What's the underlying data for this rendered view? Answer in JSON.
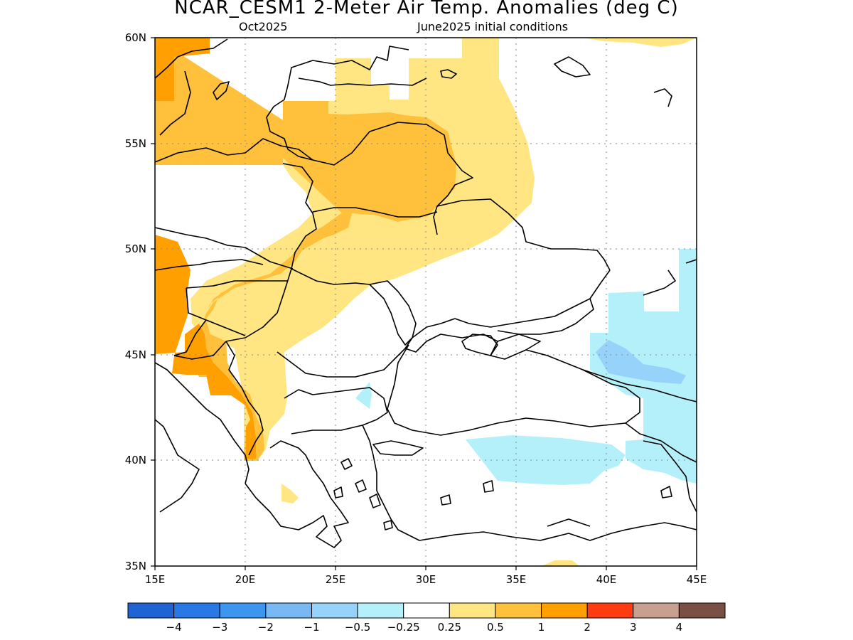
{
  "title": "NCAR_CESM1 2-Meter Air Temp. Anomalies (deg C)",
  "subtitle_left": "Oct2025",
  "subtitle_right": "June2025 initial conditions",
  "map": {
    "lon_range": [
      15,
      45
    ],
    "lat_range": [
      35,
      60
    ],
    "lon_ticks": [
      {
        "value": 15,
        "label": "15E"
      },
      {
        "value": 20,
        "label": "20E"
      },
      {
        "value": 25,
        "label": "25E"
      },
      {
        "value": 30,
        "label": "30E"
      },
      {
        "value": 35,
        "label": "35E"
      },
      {
        "value": 40,
        "label": "40E"
      },
      {
        "value": 45,
        "label": "45E"
      }
    ],
    "lat_ticks": [
      {
        "value": 60,
        "label": "60N"
      },
      {
        "value": 55,
        "label": "55N"
      },
      {
        "value": 50,
        "label": "50N"
      },
      {
        "value": 45,
        "label": "45N"
      },
      {
        "value": 40,
        "label": "40N"
      },
      {
        "value": 35,
        "label": "35N"
      }
    ],
    "grid": true
  },
  "colorbar": {
    "colors": [
      "#1e64d2",
      "#2878e6",
      "#3c96f0",
      "#78b9f5",
      "#96d2fa",
      "#b4f0fa",
      "#ffffff",
      "#ffe682",
      "#ffc03c",
      "#ffa000",
      "#ff3c10",
      "#c8a090",
      "#7a5044"
    ],
    "labels": [
      "−4",
      "−3",
      "−2",
      "−1",
      "−0.5",
      "−0.25",
      "0.25",
      "0.5",
      "1",
      "2",
      "3",
      "4"
    ]
  },
  "palette": {
    "anom_0_5": "#ffe682",
    "anom_1": "#ffc03c",
    "anom_2": "#ffa000",
    "anom_neg_0_25": "#b4f0fa",
    "anom_neg_0_5": "#96d2fa"
  }
}
